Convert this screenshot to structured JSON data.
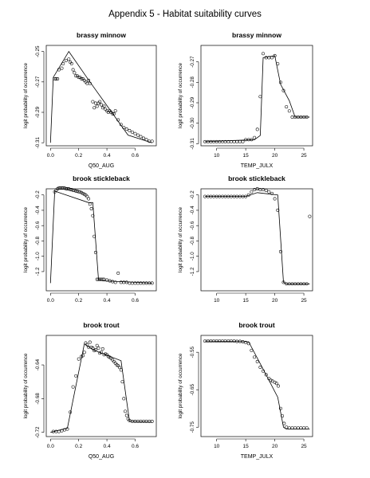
{
  "title": "Appendix 5 - Habitat suitability curves",
  "chart_data": [
    {
      "type": "line",
      "title": "brassy minnow",
      "xlabel": "Q50_AUG",
      "ylabel": "logit probability of occurrence",
      "xlim": [
        -0.03,
        0.75
      ],
      "ylim": [
        -0.312,
        -0.246
      ],
      "xticks": [
        0.0,
        0.2,
        0.4,
        0.6
      ],
      "yticks": [
        -0.31,
        -0.29,
        -0.27,
        -0.25
      ],
      "xtick_labels": [
        "0.0",
        "0.2",
        "0.4",
        "0.6"
      ],
      "ytick_labels": [
        "-0.31",
        "-0.29",
        "-0.27",
        "-0.25"
      ],
      "line": {
        "x": [
          0.0,
          0.02,
          0.13,
          0.28,
          0.55,
          0.72
        ],
        "y": [
          -0.31,
          -0.267,
          -0.25,
          -0.27,
          -0.305,
          -0.31
        ]
      },
      "points": {
        "x": [
          0.03,
          0.04,
          0.05,
          0.06,
          0.08,
          0.09,
          0.11,
          0.13,
          0.14,
          0.15,
          0.16,
          0.17,
          0.18,
          0.19,
          0.2,
          0.21,
          0.22,
          0.23,
          0.24,
          0.25,
          0.26,
          0.27,
          0.28,
          0.3,
          0.31,
          0.32,
          0.33,
          0.34,
          0.35,
          0.36,
          0.37,
          0.38,
          0.39,
          0.4,
          0.41,
          0.42,
          0.43,
          0.44,
          0.45,
          0.46,
          0.48,
          0.5,
          0.52,
          0.54,
          0.56,
          0.58,
          0.6,
          0.62,
          0.64,
          0.66,
          0.68,
          0.7,
          0.72
        ],
        "y": [
          -0.268,
          -0.268,
          -0.268,
          -0.262,
          -0.261,
          -0.258,
          -0.256,
          -0.255,
          -0.257,
          -0.258,
          -0.262,
          -0.264,
          -0.266,
          -0.266,
          -0.267,
          -0.267,
          -0.268,
          -0.268,
          -0.269,
          -0.27,
          -0.271,
          -0.269,
          -0.271,
          -0.283,
          -0.287,
          -0.284,
          -0.286,
          -0.284,
          -0.283,
          -0.285,
          -0.287,
          -0.286,
          -0.288,
          -0.289,
          -0.29,
          -0.289,
          -0.29,
          -0.291,
          -0.291,
          -0.289,
          -0.295,
          -0.298,
          -0.3,
          -0.301,
          -0.302,
          -0.303,
          -0.304,
          -0.305,
          -0.306,
          -0.307,
          -0.308,
          -0.309,
          -0.309
        ]
      }
    },
    {
      "type": "line",
      "title": "brassy minnow",
      "xlabel": "TEMP_JULX",
      "ylabel": "logit probability of occurrence",
      "xlim": [
        7.3,
        26.5
      ],
      "ylim": [
        -0.311,
        -0.262
      ],
      "xticks": [
        10,
        15,
        20,
        25
      ],
      "yticks": [
        -0.31,
        -0.3,
        -0.29,
        -0.28,
        -0.27
      ],
      "xtick_labels": [
        "10",
        "15",
        "20",
        "25"
      ],
      "ytick_labels": [
        "-0.31",
        "-0.30",
        "-0.29",
        "-0.28",
        "-0.27"
      ],
      "line": {
        "x": [
          8.0,
          16.5,
          17.5,
          18.0,
          20.0,
          21.0,
          22.5,
          23.5,
          26.0
        ],
        "y": [
          -0.309,
          -0.308,
          -0.306,
          -0.268,
          -0.267,
          -0.281,
          -0.289,
          -0.297,
          -0.297
        ]
      },
      "points": {
        "x": [
          8.0,
          8.5,
          9.0,
          9.5,
          10.0,
          10.5,
          11.0,
          11.5,
          12.0,
          12.5,
          13.0,
          13.5,
          14.0,
          14.5,
          15.0,
          15.5,
          16.0,
          16.5,
          17.0,
          17.5,
          18.0,
          18.5,
          19.0,
          19.5,
          20.0,
          20.5,
          21.0,
          21.5,
          22.0,
          22.5,
          23.0,
          23.5,
          24.0,
          24.5,
          25.0,
          25.5
        ],
        "y": [
          -0.309,
          -0.309,
          -0.309,
          -0.309,
          -0.309,
          -0.309,
          -0.309,
          -0.309,
          -0.309,
          -0.309,
          -0.309,
          -0.309,
          -0.309,
          -0.309,
          -0.308,
          -0.308,
          -0.308,
          -0.307,
          -0.303,
          -0.287,
          -0.266,
          -0.268,
          -0.268,
          -0.268,
          -0.267,
          -0.271,
          -0.28,
          -0.284,
          -0.292,
          -0.294,
          -0.297,
          -0.297,
          -0.297,
          -0.297,
          -0.297,
          -0.297
        ]
      }
    },
    {
      "type": "line",
      "title": "brook stickleback",
      "xlabel": "",
      "ylabel": "logit probability of occurrence",
      "xlim": [
        -0.03,
        0.75
      ],
      "ylim": [
        -1.45,
        -0.12
      ],
      "xticks": [
        0.0,
        0.2,
        0.4,
        0.6
      ],
      "yticks": [
        -1.2,
        -1.0,
        -0.8,
        -0.6,
        -0.4,
        -0.2
      ],
      "xtick_labels": [
        "0.0",
        "0.2",
        "0.4",
        "0.6"
      ],
      "ytick_labels": [
        "-1.2",
        "-1.0",
        "-0.8",
        "-0.6",
        "-0.4",
        "-0.2"
      ],
      "line": {
        "x": [
          0.0,
          0.03,
          0.27,
          0.3,
          0.34,
          0.37,
          0.72
        ],
        "y": [
          -1.35,
          -0.15,
          -0.3,
          -0.3,
          -1.3,
          -1.32,
          -1.35
        ]
      },
      "points": {
        "x": [
          0.03,
          0.04,
          0.05,
          0.06,
          0.07,
          0.08,
          0.09,
          0.1,
          0.11,
          0.12,
          0.13,
          0.14,
          0.15,
          0.16,
          0.17,
          0.18,
          0.19,
          0.2,
          0.21,
          0.22,
          0.23,
          0.24,
          0.25,
          0.26,
          0.27,
          0.28,
          0.29,
          0.3,
          0.31,
          0.32,
          0.33,
          0.34,
          0.35,
          0.36,
          0.37,
          0.38,
          0.4,
          0.42,
          0.44,
          0.46,
          0.48,
          0.5,
          0.52,
          0.54,
          0.56,
          0.58,
          0.6,
          0.62,
          0.64,
          0.66,
          0.68,
          0.7,
          0.72
        ],
        "y": [
          -0.16,
          -0.14,
          -0.12,
          -0.11,
          -0.11,
          -0.11,
          -0.11,
          -0.11,
          -0.12,
          -0.12,
          -0.12,
          -0.13,
          -0.13,
          -0.14,
          -0.14,
          -0.15,
          -0.15,
          -0.16,
          -0.16,
          -0.17,
          -0.18,
          -0.19,
          -0.2,
          -0.22,
          -0.25,
          -0.32,
          -0.38,
          -0.47,
          -0.74,
          -0.95,
          -1.3,
          -1.3,
          -1.3,
          -1.3,
          -1.3,
          -1.3,
          -1.31,
          -1.32,
          -1.33,
          -1.34,
          -1.22,
          -1.34,
          -1.34,
          -1.34,
          -1.35,
          -1.35,
          -1.35,
          -1.35,
          -1.35,
          -1.35,
          -1.35,
          -1.35,
          -1.35
        ]
      }
    },
    {
      "type": "line",
      "title": "brook stickleback",
      "xlabel": "",
      "ylabel": "logit probability of occurrence",
      "xlim": [
        7.3,
        26.5
      ],
      "ylim": [
        -1.45,
        -0.12
      ],
      "xticks": [
        10,
        15,
        20,
        25
      ],
      "yticks": [
        -1.2,
        -1.0,
        -0.8,
        -0.6,
        -0.4,
        -0.2
      ],
      "xtick_labels": [
        "10",
        "15",
        "20",
        "25"
      ],
      "ytick_labels": [
        "-1.2",
        "-1.0",
        "-0.8",
        "-0.6",
        "-0.4",
        "-0.2"
      ],
      "line": {
        "x": [
          8.0,
          15.0,
          17.0,
          20.5,
          21.5,
          22.0,
          26.0
        ],
        "y": [
          -0.22,
          -0.22,
          -0.17,
          -0.2,
          -1.34,
          -1.36,
          -1.36
        ]
      },
      "points": {
        "x": [
          8.0,
          8.5,
          9.0,
          9.5,
          10.0,
          10.5,
          11.0,
          11.5,
          12.0,
          12.5,
          13.0,
          13.5,
          14.0,
          14.5,
          15.0,
          15.5,
          16.0,
          16.5,
          17.0,
          17.5,
          18.0,
          18.5,
          19.0,
          19.5,
          20.0,
          20.5,
          21.0,
          21.5,
          22.0,
          22.5,
          23.0,
          23.5,
          24.0,
          24.5,
          25.0,
          25.5,
          26.0
        ],
        "y": [
          -0.22,
          -0.22,
          -0.22,
          -0.22,
          -0.22,
          -0.22,
          -0.22,
          -0.22,
          -0.22,
          -0.22,
          -0.22,
          -0.22,
          -0.22,
          -0.22,
          -0.22,
          -0.2,
          -0.16,
          -0.13,
          -0.12,
          -0.13,
          -0.13,
          -0.14,
          -0.16,
          -0.18,
          -0.25,
          -0.4,
          -0.94,
          -1.34,
          -1.36,
          -1.36,
          -1.36,
          -1.36,
          -1.36,
          -1.36,
          -1.36,
          -1.36,
          -0.48
        ]
      }
    },
    {
      "type": "line",
      "title": "brook trout",
      "xlabel": "Q50_AUG",
      "ylabel": "logit probability of occurrence",
      "xlim": [
        -0.03,
        0.75
      ],
      "ylim": [
        -0.725,
        -0.605
      ],
      "xticks": [
        0.0,
        0.2,
        0.4,
        0.6
      ],
      "yticks": [
        -0.72,
        -0.68,
        -0.64
      ],
      "xtick_labels": [
        "0.0",
        "0.2",
        "0.4",
        "0.6"
      ],
      "ytick_labels": [
        "-0.72",
        "-0.68",
        "-0.64"
      ],
      "line": {
        "x": [
          0.0,
          0.12,
          0.24,
          0.3,
          0.5,
          0.56,
          0.72
        ],
        "y": [
          -0.72,
          -0.715,
          -0.615,
          -0.622,
          -0.635,
          -0.707,
          -0.708
        ]
      },
      "points": {
        "x": [
          0.02,
          0.04,
          0.06,
          0.08,
          0.1,
          0.12,
          0.14,
          0.16,
          0.18,
          0.2,
          0.22,
          0.23,
          0.24,
          0.25,
          0.26,
          0.27,
          0.28,
          0.29,
          0.3,
          0.31,
          0.32,
          0.33,
          0.34,
          0.35,
          0.36,
          0.37,
          0.38,
          0.39,
          0.4,
          0.41,
          0.42,
          0.43,
          0.44,
          0.45,
          0.46,
          0.47,
          0.48,
          0.49,
          0.5,
          0.51,
          0.52,
          0.53,
          0.54,
          0.55,
          0.56,
          0.58,
          0.6,
          0.62,
          0.64,
          0.66,
          0.68,
          0.7,
          0.72
        ],
        "y": [
          -0.719,
          -0.719,
          -0.719,
          -0.718,
          -0.717,
          -0.716,
          -0.696,
          -0.666,
          -0.653,
          -0.633,
          -0.63,
          -0.629,
          -0.625,
          -0.614,
          -0.616,
          -0.619,
          -0.613,
          -0.619,
          -0.62,
          -0.623,
          -0.622,
          -0.617,
          -0.62,
          -0.626,
          -0.625,
          -0.621,
          -0.628,
          -0.627,
          -0.628,
          -0.63,
          -0.631,
          -0.632,
          -0.634,
          -0.636,
          -0.638,
          -0.64,
          -0.641,
          -0.643,
          -0.646,
          -0.66,
          -0.68,
          -0.695,
          -0.7,
          -0.704,
          -0.706,
          -0.707,
          -0.707,
          -0.707,
          -0.707,
          -0.707,
          -0.707,
          -0.707,
          -0.707
        ]
      }
    },
    {
      "type": "line",
      "title": "brook trout",
      "xlabel": "TEMP_JULX",
      "ylabel": "logit probability of occurrence",
      "xlim": [
        7.3,
        26.5
      ],
      "ylim": [
        -0.775,
        -0.505
      ],
      "xticks": [
        10,
        15,
        20,
        25
      ],
      "yticks": [
        -0.75,
        -0.65,
        -0.55
      ],
      "xtick_labels": [
        "10",
        "15",
        "20",
        "25"
      ],
      "ytick_labels": [
        "-0.75",
        "-0.65",
        "-0.55"
      ],
      "line": {
        "x": [
          8.0,
          15.5,
          18.5,
          20.5,
          21.5,
          22.0,
          26.0
        ],
        "y": [
          -0.52,
          -0.522,
          -0.61,
          -0.67,
          -0.75,
          -0.755,
          -0.755
        ]
      },
      "points": {
        "x": [
          8.0,
          8.5,
          9.0,
          9.5,
          10.0,
          10.5,
          11.0,
          11.5,
          12.0,
          12.5,
          13.0,
          13.5,
          14.0,
          14.5,
          15.0,
          15.5,
          16.0,
          16.5,
          17.0,
          17.5,
          18.0,
          18.5,
          19.0,
          19.3,
          19.6,
          20.0,
          20.3,
          20.6,
          21.0,
          21.3,
          21.6,
          22.0,
          22.5,
          23.0,
          23.5,
          24.0,
          24.5,
          25.0,
          25.5
        ],
        "y": [
          -0.52,
          -0.52,
          -0.52,
          -0.52,
          -0.52,
          -0.52,
          -0.52,
          -0.52,
          -0.52,
          -0.52,
          -0.52,
          -0.521,
          -0.521,
          -0.522,
          -0.524,
          -0.527,
          -0.545,
          -0.563,
          -0.575,
          -0.59,
          -0.6,
          -0.61,
          -0.62,
          -0.625,
          -0.627,
          -0.63,
          -0.633,
          -0.64,
          -0.7,
          -0.72,
          -0.74,
          -0.75,
          -0.752,
          -0.752,
          -0.752,
          -0.752,
          -0.752,
          -0.752,
          -0.752
        ]
      }
    }
  ]
}
